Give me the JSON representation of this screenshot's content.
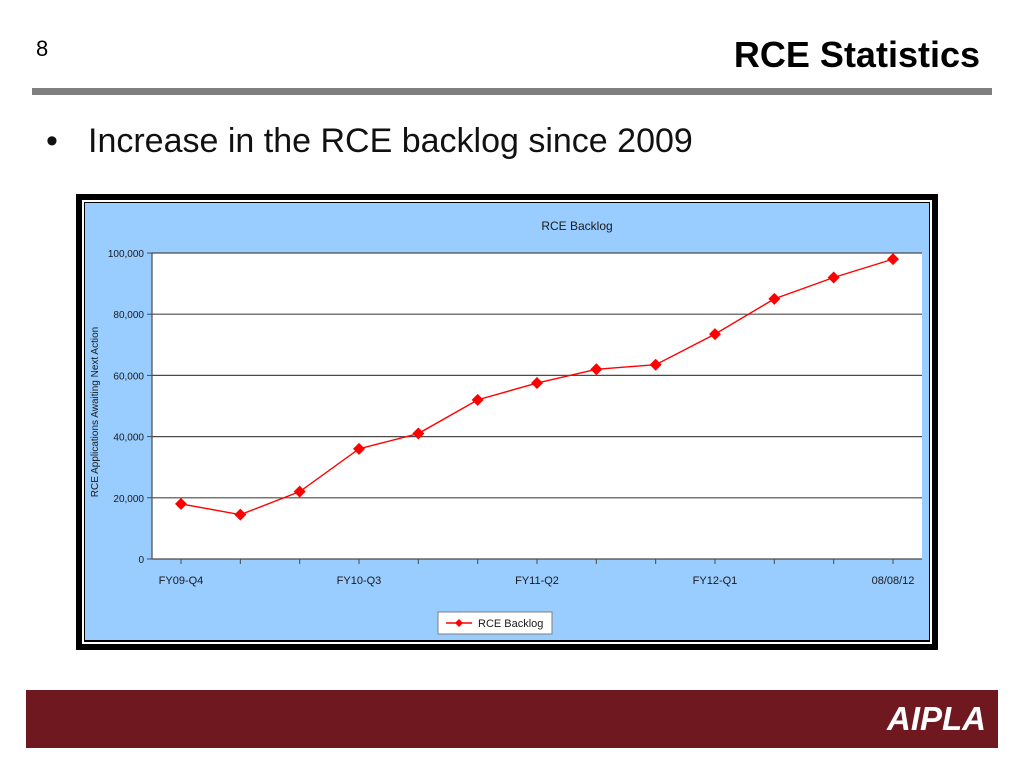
{
  "slide": {
    "number": "8",
    "title": "RCE Statistics",
    "bullet": "Increase in the RCE backlog since 2009",
    "footer_logo": "AIPLA"
  },
  "colors": {
    "footer": "#6f1820",
    "chart_background": "#99ccff",
    "series": "#ff0000",
    "rule": "#7f7f7f"
  },
  "chart_data": {
    "type": "line",
    "title": "RCE Backlog",
    "ylabel": "RCE Applications Awaiting Next Action",
    "xlabel": "",
    "ylim": [
      0,
      100000
    ],
    "yticks": [
      0,
      20000,
      40000,
      60000,
      80000,
      100000
    ],
    "ytick_labels": [
      "0",
      "20,000",
      "40,000",
      "60,000",
      "80,000",
      "100,000"
    ],
    "categories": [
      "FY09-Q4",
      "",
      "",
      "FY10-Q3",
      "",
      "",
      "FY11-Q2",
      "",
      "",
      "FY12-Q1",
      "",
      "",
      "08/08/12"
    ],
    "series": [
      {
        "name": "RCE Backlog",
        "values": [
          18000,
          14500,
          22000,
          36000,
          41000,
          52000,
          57500,
          62000,
          63500,
          73500,
          85000,
          92000,
          98000
        ]
      }
    ],
    "grid": true,
    "legend": "bottom"
  }
}
